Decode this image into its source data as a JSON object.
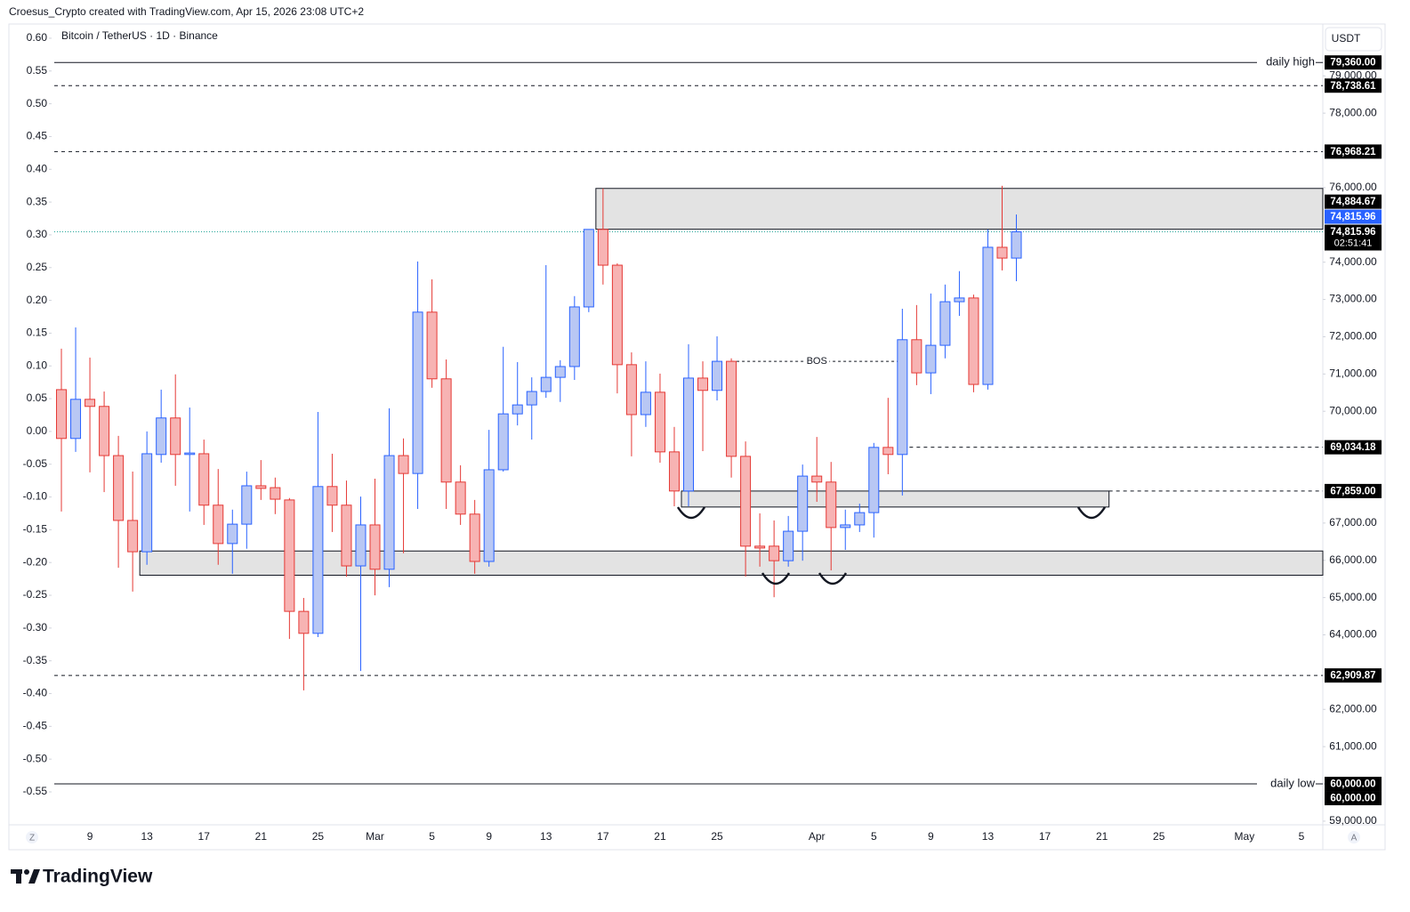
{
  "header": {
    "attribution": "Croesus_Crypto created with TradingView.com, Apr 15, 2026 23:08 UTC+2"
  },
  "footer": {
    "logo": "TradingView"
  },
  "controls": [
    "Z",
    "A"
  ],
  "chart_data": {
    "type": "candlestick",
    "title": "Bitcoin / TetherUS · 1D · Binance",
    "currency": "USDT",
    "grid": false,
    "colors": {
      "up": "#2962ff",
      "up_fill": "#b8c7f4",
      "down": "#e53935",
      "down_fill": "#f7b3b3",
      "last": "#26a69a",
      "zone_fill": "#e3e3e3"
    },
    "categories": [
      null,
      null,
      "9",
      null,
      null,
      null,
      "13",
      null,
      null,
      null,
      "17",
      null,
      null,
      null,
      "21",
      null,
      null,
      null,
      "25",
      null,
      null,
      null,
      "Mar",
      null,
      null,
      null,
      "5",
      null,
      null,
      null,
      "9",
      null,
      null,
      null,
      "13",
      null,
      null,
      null,
      "17",
      null,
      null,
      null,
      "21",
      null,
      null,
      null,
      "25",
      null,
      null,
      null,
      null,
      null,
      null,
      "Apr",
      null,
      null,
      null,
      "5",
      null,
      null,
      null,
      "9",
      null,
      null,
      null,
      "13",
      null,
      null,
      null,
      "17",
      null,
      null,
      null,
      "21",
      null,
      null,
      null,
      "25",
      null,
      null,
      null,
      null,
      null,
      "May",
      null,
      null,
      null,
      "5",
      null
    ],
    "open": [
      70580,
      69270,
      70320,
      70130,
      68810,
      67070,
      66230,
      68840,
      69820,
      68840,
      68860,
      67480,
      66450,
      66970,
      68000,
      67950,
      67620,
      64630,
      64040,
      67980,
      67480,
      65850,
      66950,
      65760,
      68810,
      68330,
      72660,
      70870,
      68100,
      67240,
      65970,
      68430,
      69930,
      70170,
      70530,
      70910,
      71200,
      72800,
      74880,
      73920,
      71250,
      69910,
      70510,
      68910,
      67860,
      70890,
      70560,
      71340,
      68790,
      66380,
      66380,
      65990,
      66780,
      68260,
      68100,
      66880,
      66950,
      67280,
      69030,
      68840,
      71920,
      71030,
      71770,
      72940,
      73040,
      70720,
      74400,
      74110,
      null,
      null,
      null,
      null,
      null,
      null,
      null,
      null,
      null,
      null,
      null,
      null,
      null,
      null,
      null,
      null,
      null,
      null,
      null,
      null,
      null
    ],
    "high": [
      71680,
      72250,
      71440,
      70530,
      69340,
      68380,
      69460,
      70580,
      70990,
      70100,
      69240,
      68450,
      67360,
      68380,
      68690,
      68220,
      67670,
      64990,
      69980,
      68860,
      68140,
      67710,
      68190,
      70080,
      69270,
      74020,
      73540,
      71390,
      68550,
      67620,
      69500,
      71730,
      71320,
      70910,
      73920,
      71370,
      73090,
      74880,
      75980,
      73970,
      71580,
      71340,
      71010,
      69580,
      71800,
      71340,
      72010,
      71420,
      69190,
      67260,
      67070,
      67190,
      68570,
      69310,
      68640,
      67360,
      67520,
      69150,
      70360,
      72750,
      72850,
      73160,
      73400,
      73760,
      73130,
      74880,
      76050,
      75280,
      null,
      null,
      null,
      null,
      null,
      null,
      null,
      null,
      null,
      null,
      null,
      null,
      null,
      null,
      null,
      null,
      null,
      null,
      null,
      null,
      null
    ],
    "low": [
      67310,
      68910,
      68360,
      67830,
      65800,
      65160,
      65880,
      68620,
      68000,
      67310,
      66950,
      65880,
      65640,
      66310,
      67620,
      67240,
      63890,
      62510,
      63940,
      66760,
      65560,
      63030,
      65060,
      65280,
      66190,
      67380,
      70630,
      67380,
      66950,
      65640,
      65830,
      68380,
      69620,
      69240,
      70360,
      70250,
      70840,
      72660,
      73400,
      70480,
      68790,
      69580,
      68620,
      67450,
      67450,
      68930,
      70290,
      68220,
      65560,
      65830,
      65010,
      65830,
      65990,
      67570,
      65730,
      66280,
      66760,
      66610,
      68310,
      67740,
      70700,
      70460,
      71420,
      72560,
      70510,
      70580,
      73780,
      73490,
      null,
      null,
      null,
      null,
      null,
      null,
      null,
      null,
      null,
      null,
      null,
      null,
      null,
      null,
      null,
      null,
      null,
      null,
      null,
      null,
      null
    ],
    "close": [
      69270,
      70320,
      70130,
      68810,
      67070,
      66230,
      68860,
      69820,
      68840,
      68880,
      67480,
      66450,
      66970,
      68000,
      67930,
      67640,
      64630,
      64040,
      67980,
      67480,
      65850,
      66950,
      65760,
      68810,
      68330,
      72660,
      70870,
      68100,
      67240,
      65970,
      68430,
      69930,
      70170,
      70530,
      70910,
      71200,
      72800,
      74880,
      73920,
      71250,
      69910,
      70510,
      68910,
      67860,
      70890,
      70560,
      71340,
      68790,
      66380,
      66330,
      65990,
      66780,
      68260,
      68100,
      66880,
      66950,
      67280,
      69030,
      68840,
      71920,
      71030,
      71770,
      72940,
      73040,
      70720,
      74400,
      74110,
      74815.96,
      null,
      null,
      null,
      null,
      null,
      null,
      null,
      null,
      null,
      null,
      null,
      null,
      null,
      null,
      null,
      null,
      null,
      null,
      null,
      null,
      null
    ],
    "ylim": [
      58950,
      80320
    ],
    "yticks": [
      {
        "value": 79000,
        "label": "79,000.00"
      },
      {
        "value": 78000,
        "label": "78,000.00"
      },
      {
        "value": 76000,
        "label": "76,000.00"
      },
      {
        "value": 74000,
        "label": "74,000.00"
      },
      {
        "value": 73000,
        "label": "73,000.00"
      },
      {
        "value": 72000,
        "label": "72,000.00"
      },
      {
        "value": 71000,
        "label": "71,000.00"
      },
      {
        "value": 70000,
        "label": "70,000.00"
      },
      {
        "value": 67000,
        "label": "67,000.00"
      },
      {
        "value": 66000,
        "label": "66,000.00"
      },
      {
        "value": 65000,
        "label": "65,000.00"
      },
      {
        "value": 64000,
        "label": "64,000.00"
      },
      {
        "value": 62000,
        "label": "62,000.00"
      },
      {
        "value": 61000,
        "label": "61,000.00"
      },
      {
        "value": 60000,
        "label": "60,000.00"
      },
      {
        "value": 59000,
        "label": "59,000.00"
      }
    ],
    "y2lim": [
      -0.5975,
      0.6176
    ],
    "y2ticks": [
      {
        "value": 0.6,
        "label": "0.60"
      },
      {
        "value": 0.55,
        "label": "0.55"
      },
      {
        "value": 0.5,
        "label": "0.50"
      },
      {
        "value": 0.45,
        "label": "0.45"
      },
      {
        "value": 0.4,
        "label": "0.40"
      },
      {
        "value": 0.35,
        "label": "0.35"
      },
      {
        "value": 0.3,
        "label": "0.30"
      },
      {
        "value": 0.25,
        "label": "0.25"
      },
      {
        "value": 0.2,
        "label": "0.20"
      },
      {
        "value": 0.15,
        "label": "0.15"
      },
      {
        "value": 0.1,
        "label": "0.10"
      },
      {
        "value": 0.05,
        "label": "0.05"
      },
      {
        "value": 0,
        "label": "0.00"
      },
      {
        "value": -0.05,
        "label": "-0.05"
      },
      {
        "value": -0.1,
        "label": "-0.10"
      },
      {
        "value": -0.15,
        "label": "-0.15"
      },
      {
        "value": -0.2,
        "label": "-0.20"
      },
      {
        "value": -0.25,
        "label": "-0.25"
      },
      {
        "value": -0.3,
        "label": "-0.30"
      },
      {
        "value": -0.35,
        "label": "-0.35"
      },
      {
        "value": -0.4,
        "label": "-0.40"
      },
      {
        "value": -0.45,
        "label": "-0.45"
      },
      {
        "value": -0.5,
        "label": "-0.50"
      },
      {
        "value": -0.55,
        "label": "-0.55"
      }
    ],
    "zones": [
      {
        "top": 75980,
        "bottom": 74884.67,
        "label": "74,884.67",
        "from": 38
      },
      {
        "top": 66250,
        "bottom": 65600,
        "from": 6
      },
      {
        "top": 67859,
        "bottom": 67430,
        "label": "67,859.00",
        "from": 44,
        "to": 73
      }
    ],
    "levels": [
      {
        "value": 79360,
        "label": "79,360.00",
        "name": "daily high",
        "style": "solid"
      },
      {
        "value": 78738.61,
        "label": "78,738.61",
        "style": "dashed"
      },
      {
        "value": 76968.21,
        "label": "76,968.21",
        "style": "dashed"
      },
      {
        "value": 69034.18,
        "label": "69,034.18",
        "style": "dashed",
        "from": 60
      },
      {
        "value": 62909.87,
        "label": "62,909.87",
        "style": "dashed"
      },
      {
        "value": 60000,
        "label": "60,000.00",
        "name": "daily low",
        "style": "solid"
      }
    ],
    "bos": {
      "label": "BOS",
      "value": 71340,
      "from": 47,
      "to": 59
    },
    "last_price": {
      "value": 74815.96,
      "label": "74,815.96",
      "countdown": "02:51:41"
    }
  }
}
